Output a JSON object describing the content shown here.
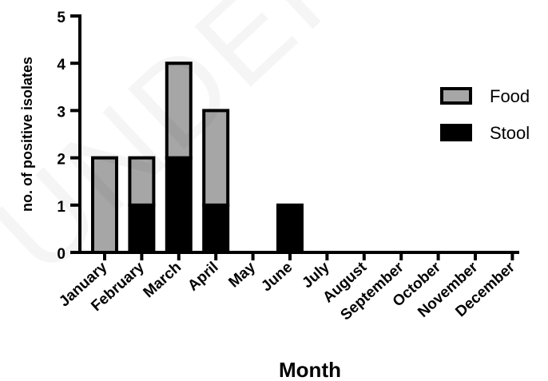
{
  "watermark": "UNDER PEER REVIEW",
  "colors": {
    "food": "#a6a6a6",
    "stool": "#000000",
    "outline": "#000000"
  },
  "chart_data": {
    "type": "bar",
    "stacked": true,
    "categories": [
      "January",
      "February",
      "March",
      "April",
      "May",
      "June",
      "July",
      "August",
      "September",
      "October",
      "November",
      "December"
    ],
    "series": [
      {
        "name": "Stool",
        "values": [
          0,
          1,
          2,
          1,
          0,
          1,
          0,
          0,
          0,
          0,
          0,
          0
        ]
      },
      {
        "name": "Food",
        "values": [
          2,
          1,
          2,
          2,
          0,
          0,
          0,
          0,
          0,
          0,
          0,
          0
        ]
      }
    ],
    "xlabel": "Month",
    "ylabel": "no. of positive isolates",
    "ylim": [
      0,
      5
    ],
    "yticks": [
      0,
      1,
      2,
      3,
      4,
      5
    ],
    "legend_position": "right",
    "legend_order": [
      "Food",
      "Stool"
    ],
    "grid": false
  }
}
